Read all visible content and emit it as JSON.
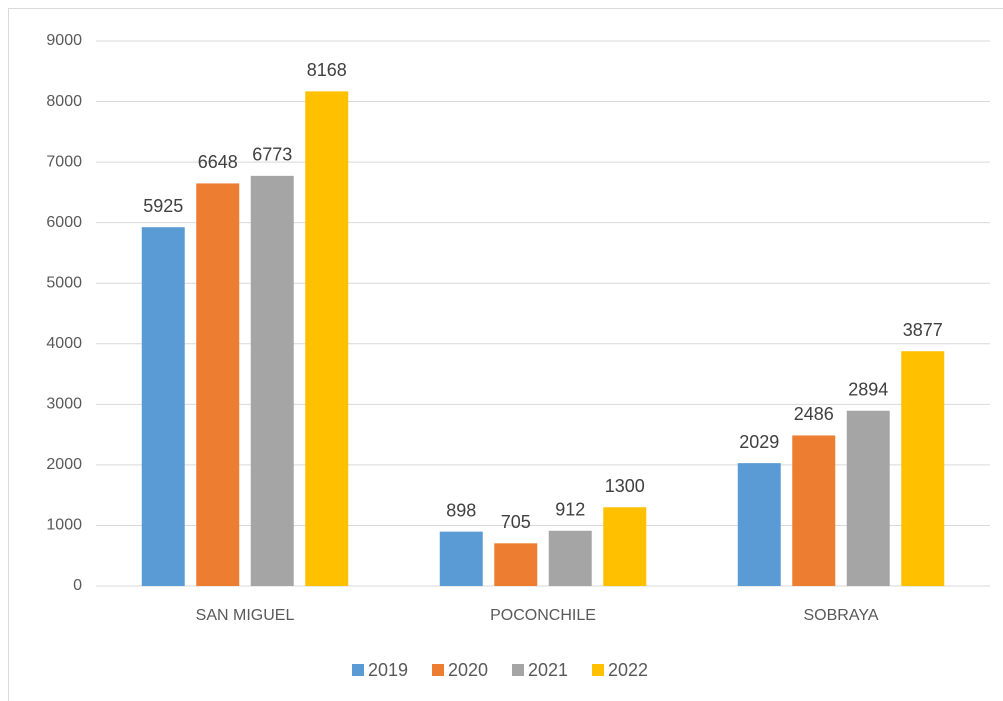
{
  "chart_data": {
    "type": "bar",
    "categories": [
      "SAN MIGUEL",
      "POCONCHILE",
      "SOBRAYA"
    ],
    "series": [
      {
        "name": "2019",
        "color": "#5b9bd5",
        "values": [
          5925,
          898,
          2029
        ]
      },
      {
        "name": "2020",
        "color": "#ed7d31",
        "values": [
          6648,
          705,
          2486
        ]
      },
      {
        "name": "2021",
        "color": "#a5a5a5",
        "values": [
          6773,
          912,
          2894
        ]
      },
      {
        "name": "2022",
        "color": "#ffc000",
        "values": [
          8168,
          1300,
          3877
        ]
      }
    ],
    "ylim": [
      0,
      9000
    ],
    "yticks": [
      0,
      1000,
      2000,
      3000,
      4000,
      5000,
      6000,
      7000,
      8000,
      9000
    ],
    "grid": true,
    "legend": "bottom"
  }
}
